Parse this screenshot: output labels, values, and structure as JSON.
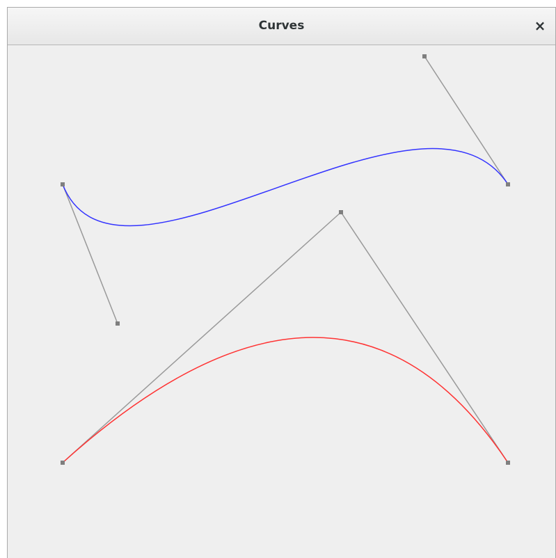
{
  "window": {
    "title": "Curves",
    "close_glyph": "×",
    "close_icon": "close-icon"
  },
  "colors": {
    "background": "#efefef",
    "cubic_curve": "#3333ff",
    "quadratic_curve": "#ff3333",
    "control_lines": "#999999",
    "handles": "#7f7f7f"
  }
}
